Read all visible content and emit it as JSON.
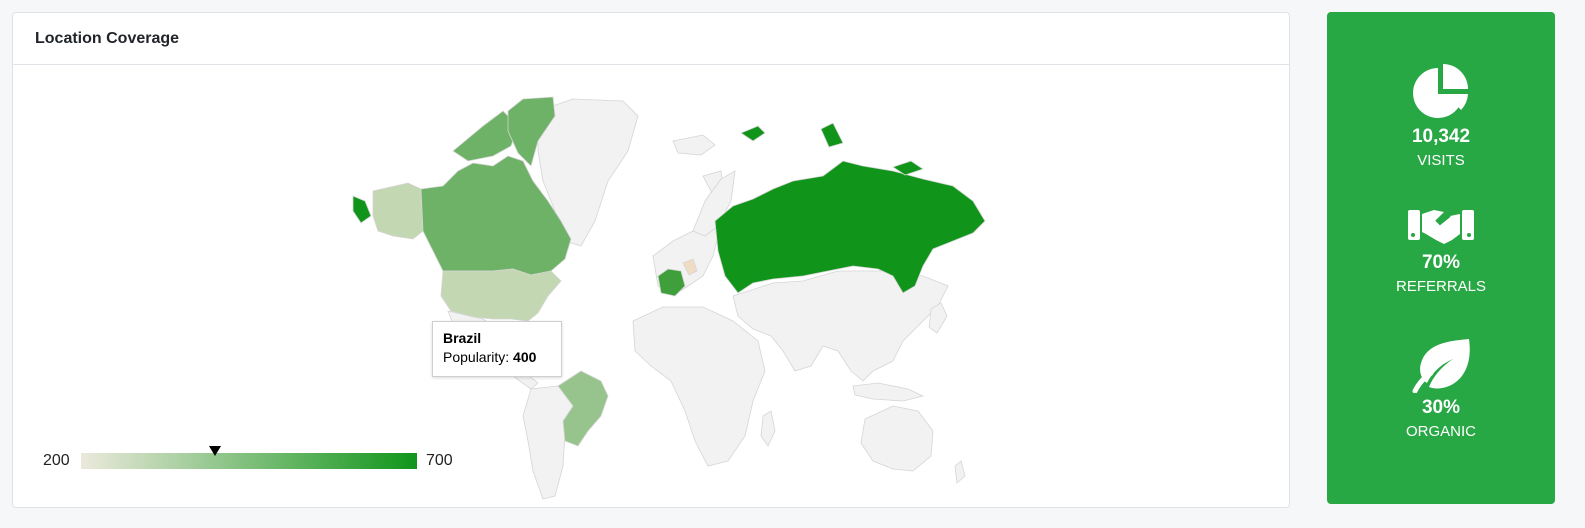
{
  "card": {
    "title": "Location Coverage"
  },
  "tooltip": {
    "country": "Brazil",
    "label": "Popularity:",
    "value": "400"
  },
  "legend": {
    "min": "200",
    "max": "700",
    "marker_value": 400,
    "color_min": "#ece9dc",
    "color_max": "#10951a"
  },
  "map": {
    "countries": [
      {
        "name": "Russia",
        "value": 700
      },
      {
        "name": "Greenland",
        "value": 600
      },
      {
        "name": "France",
        "value": 600
      },
      {
        "name": "Canada",
        "value": 500
      },
      {
        "name": "Brazil",
        "value": 400
      },
      {
        "name": "United States",
        "value": 300
      },
      {
        "name": "Alaska",
        "value": 300
      },
      {
        "name": "Germany",
        "value": 200
      }
    ]
  },
  "stats": [
    {
      "icon": "pie-chart-icon",
      "value": "10,342",
      "label": "VISITS"
    },
    {
      "icon": "handshake-icon",
      "value": "70%",
      "label": "REFERRALS"
    },
    {
      "icon": "leaf-icon",
      "value": "30%",
      "label": "ORGANIC"
    }
  ],
  "colors": {
    "accent": "#28a745",
    "map_base": "#f2f2f2",
    "map_border": "#d5d5d5"
  }
}
